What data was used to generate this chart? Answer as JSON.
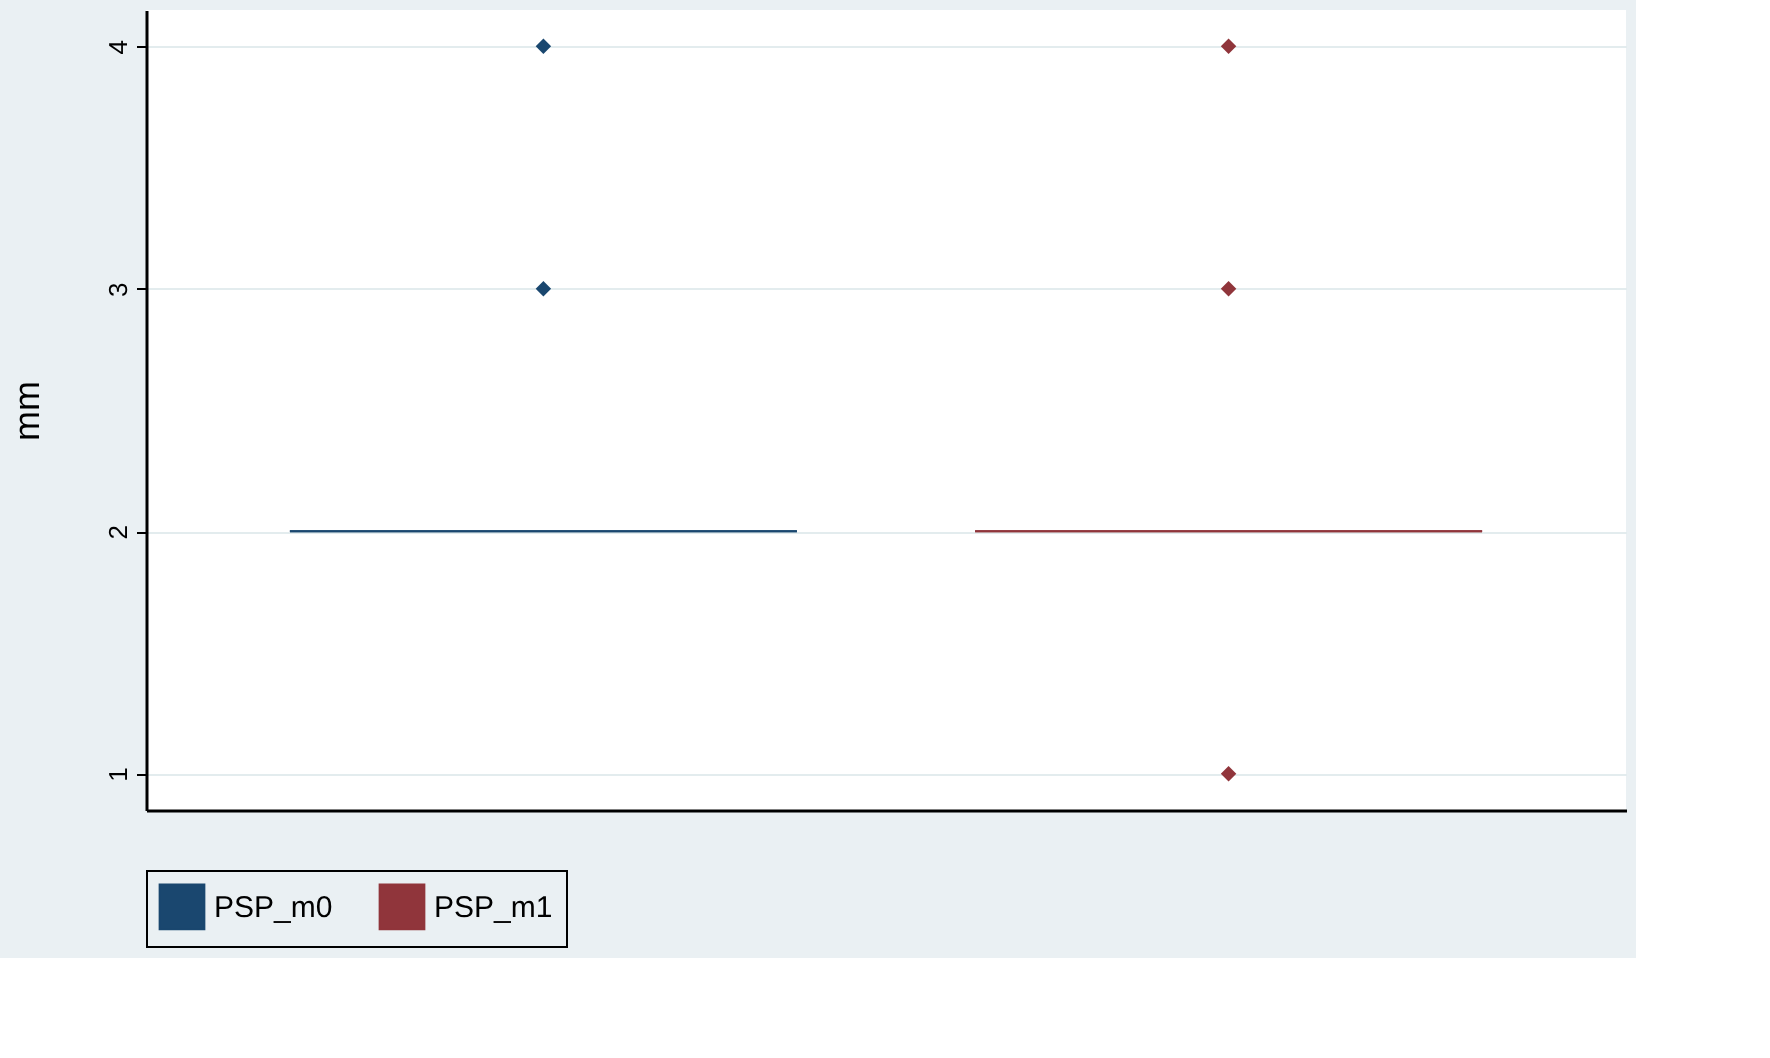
{
  "chart_data": {
    "type": "box",
    "ylabel": "mm",
    "categories": [
      null,
      null
    ],
    "series": [
      {
        "name": "PSP_m0",
        "color": "#1a476f",
        "boxes": [
          {
            "low": 2,
            "q1": 2,
            "median": 2,
            "q3": 2,
            "high": 2,
            "outliers": [
              3,
              4
            ]
          },
          null
        ]
      },
      {
        "name": "PSP_m1",
        "color": "#90353b",
        "boxes": [
          null,
          {
            "low": 2,
            "q1": 2,
            "median": 2,
            "q3": 2,
            "high": 2,
            "outliers": [
              1,
              3,
              4
            ]
          }
        ]
      }
    ],
    "ylim": [
      0.85,
      4.15
    ],
    "yticks": [
      1,
      2,
      3,
      4
    ],
    "grid": "y",
    "legend": "bottom",
    "marker": "diamond"
  }
}
